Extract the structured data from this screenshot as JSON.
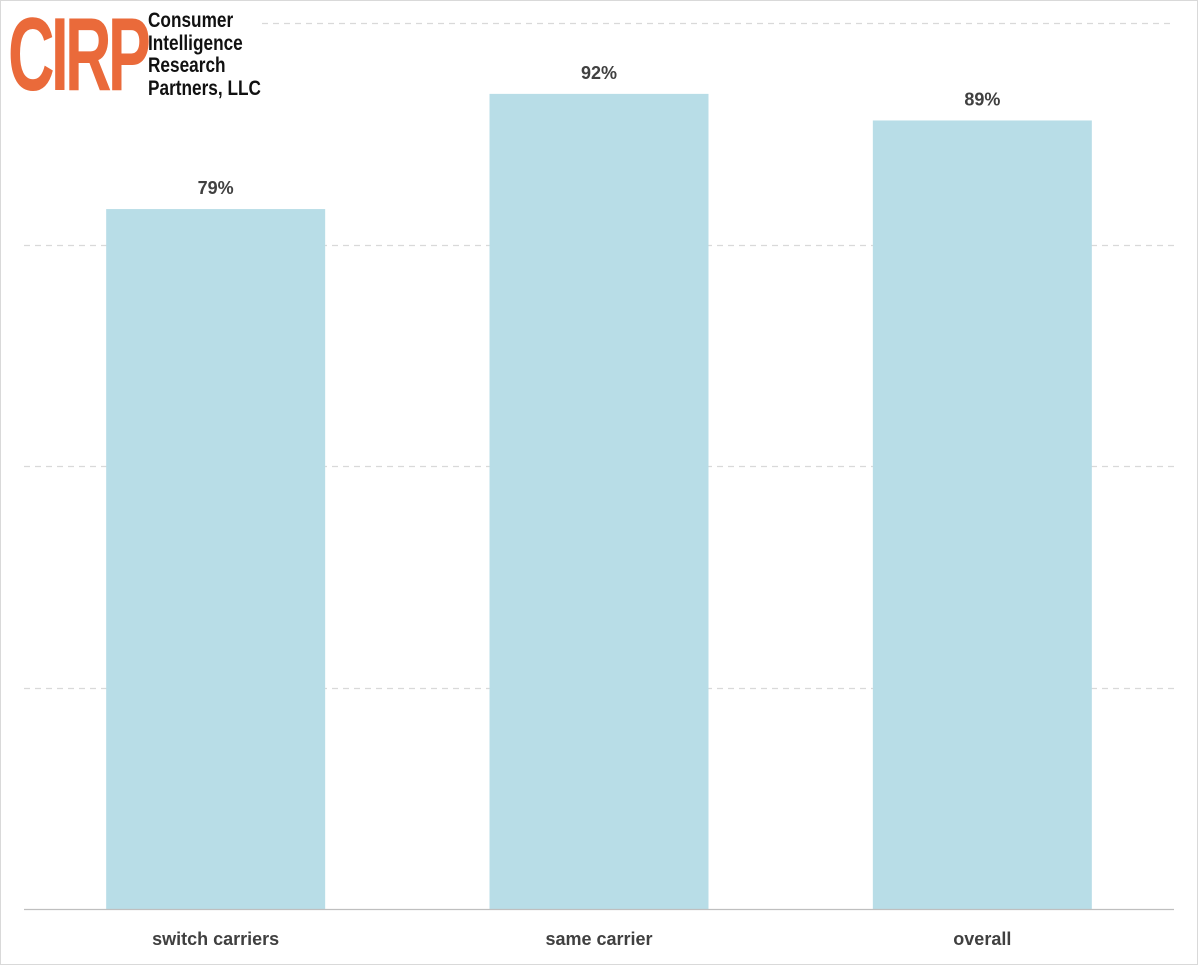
{
  "logo": {
    "mark": "CIRP",
    "lines": [
      "Consumer",
      "Intelligence",
      "Research",
      "Partners, LLC"
    ],
    "mark_color": "#ea6a3a"
  },
  "chart_data": {
    "type": "bar",
    "categories": [
      "switch carriers",
      "same carrier",
      "overall"
    ],
    "values": [
      79,
      92,
      89
    ],
    "data_labels": [
      "79%",
      "92%",
      "89%"
    ],
    "ylim": [
      0,
      100
    ],
    "gridlines": [
      25,
      50,
      75,
      100
    ],
    "grid": true,
    "title": "",
    "xlabel": "",
    "ylabel": "",
    "bar_color": "#b8dde7",
    "label_color": "#404040"
  }
}
